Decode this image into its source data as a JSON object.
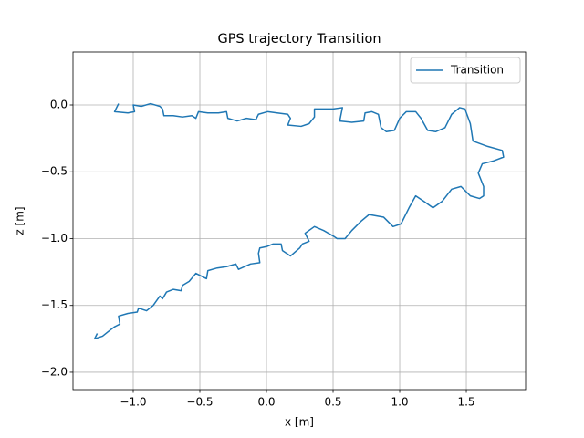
{
  "chart_data": {
    "type": "line",
    "title": "GPS trajectory Transition",
    "x_label": "x [m]",
    "y_label": "z [m]",
    "xlim": [
      -1.452,
      1.945
    ],
    "ylim": [
      -2.13,
      0.396
    ],
    "xticks": [
      {
        "value": -1.0,
        "label": "−1.0"
      },
      {
        "value": -0.5,
        "label": "−0.5"
      },
      {
        "value": 0,
        "label": "0.0"
      },
      0.5,
      {
        "value": 1.0,
        "label": "1.0"
      },
      1.5
    ],
    "yticks": [
      {
        "value": 0,
        "label": "0.0"
      },
      {
        "value": -0.5,
        "label": "−0.5"
      },
      {
        "value": -1.0,
        "label": "−1.0"
      },
      {
        "value": -1.5,
        "label": "−1.5"
      },
      {
        "value": -2.0,
        "label": "−2.0"
      }
    ],
    "grid": true,
    "legend": "upper right",
    "series": [
      {
        "name": "Transition",
        "color": "#1f77b4",
        "x": [
          -1.11,
          -1.14,
          -1.04,
          -0.99,
          -1.0,
          -0.94,
          -0.87,
          -0.8,
          -0.78,
          -0.77,
          -0.7,
          -0.63,
          -0.56,
          -0.53,
          -0.51,
          -0.44,
          -0.36,
          -0.3,
          -0.29,
          -0.22,
          -0.15,
          -0.08,
          -0.06,
          0.01,
          0.08,
          0.16,
          0.18,
          0.16,
          0.26,
          0.32,
          0.36,
          0.36,
          0.43,
          0.5,
          0.57,
          0.55,
          0.64,
          0.73,
          0.74,
          0.79,
          0.84,
          0.86,
          0.9,
          0.96,
          1.0,
          1.05,
          1.12,
          1.16,
          1.21,
          1.27,
          1.34,
          1.39,
          1.45,
          1.49,
          1.53,
          1.55,
          1.66,
          1.77,
          1.78,
          1.7,
          1.62,
          1.59,
          1.63,
          1.63,
          1.6,
          1.53,
          1.46,
          1.39,
          1.32,
          1.25,
          1.18,
          1.12,
          1.07,
          1.01,
          0.95,
          0.88,
          0.77,
          0.71,
          0.64,
          0.59,
          0.53,
          0.5,
          0.43,
          0.36,
          0.29,
          0.32,
          0.27,
          0.25,
          0.18,
          0.12,
          0.11,
          0.05,
          0.0,
          -0.05,
          -0.06,
          -0.05,
          -0.12,
          -0.21,
          -0.23,
          -0.3,
          -0.37,
          -0.44,
          -0.45,
          -0.53,
          -0.58,
          -0.63,
          -0.64,
          -0.7,
          -0.75,
          -0.78,
          -0.8,
          -0.85,
          -0.9,
          -0.96,
          -0.97,
          -1.04,
          -1.11,
          -1.1,
          -1.14,
          -1.18,
          -1.23,
          -1.29,
          -1.27
        ],
        "values": [
          0.01,
          -0.05,
          -0.06,
          -0.05,
          0.0,
          -0.01,
          0.01,
          -0.01,
          -0.03,
          -0.08,
          -0.08,
          -0.09,
          -0.08,
          -0.1,
          -0.05,
          -0.06,
          -0.06,
          -0.05,
          -0.1,
          -0.12,
          -0.1,
          -0.11,
          -0.07,
          -0.05,
          -0.06,
          -0.07,
          -0.1,
          -0.15,
          -0.16,
          -0.14,
          -0.09,
          -0.03,
          -0.03,
          -0.03,
          -0.02,
          -0.12,
          -0.13,
          -0.12,
          -0.06,
          -0.05,
          -0.07,
          -0.17,
          -0.2,
          -0.19,
          -0.1,
          -0.05,
          -0.05,
          -0.1,
          -0.19,
          -0.2,
          -0.17,
          -0.07,
          -0.02,
          -0.03,
          -0.14,
          -0.27,
          -0.31,
          -0.34,
          -0.39,
          -0.42,
          -0.44,
          -0.51,
          -0.61,
          -0.68,
          -0.7,
          -0.68,
          -0.61,
          -0.63,
          -0.72,
          -0.77,
          -0.72,
          -0.68,
          -0.77,
          -0.89,
          -0.91,
          -0.84,
          -0.82,
          -0.87,
          -0.94,
          -1.0,
          -1.0,
          -0.98,
          -0.94,
          -0.91,
          -0.96,
          -1.02,
          -1.04,
          -1.07,
          -1.13,
          -1.09,
          -1.04,
          -1.04,
          -1.06,
          -1.07,
          -1.11,
          -1.18,
          -1.19,
          -1.23,
          -1.19,
          -1.21,
          -1.22,
          -1.24,
          -1.3,
          -1.26,
          -1.32,
          -1.35,
          -1.39,
          -1.38,
          -1.4,
          -1.45,
          -1.43,
          -1.5,
          -1.54,
          -1.52,
          -1.55,
          -1.56,
          -1.58,
          -1.64,
          -1.66,
          -1.69,
          -1.73,
          -1.75,
          -1.71
        ]
      }
    ]
  }
}
